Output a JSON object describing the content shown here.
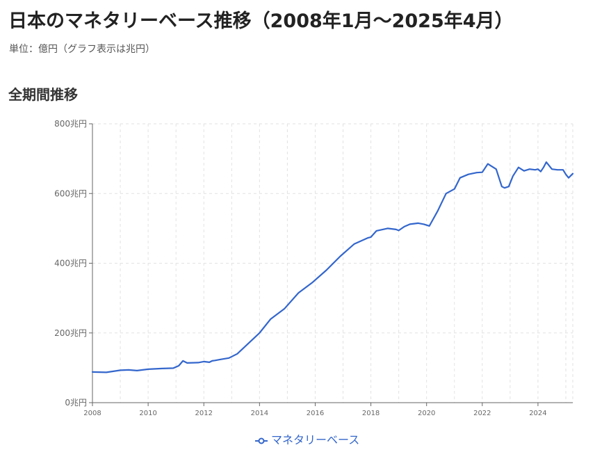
{
  "page": {
    "title": "日本のマネタリーベース推移（2008年1月～2025年4月）",
    "subtitle": "単位：億円（グラフ表示は兆円）",
    "section_title": "全期間推移"
  },
  "colors": {
    "series": "#3366cc",
    "grid": "#e2e2e2",
    "axis": "#666666"
  },
  "legend": {
    "icon": "line-circle-marker-icon",
    "position": "bottom"
  },
  "chart_data": {
    "type": "line",
    "title": "",
    "xlabel": "",
    "ylabel": "",
    "ylim": [
      0,
      800
    ],
    "xlim": [
      2008.0,
      2025.25
    ],
    "grid": true,
    "x_ticks": [
      2008,
      2010,
      2012,
      2014,
      2016,
      2018,
      2020,
      2022,
      2024
    ],
    "y_ticks": [
      0,
      200,
      400,
      600,
      800
    ],
    "y_tick_labels": [
      "0兆円",
      "200兆円",
      "400兆円",
      "600兆円",
      "800兆円"
    ],
    "series": [
      {
        "name": "マネタリーベース",
        "color": "#3366cc",
        "x": [
          2008.0,
          2008.5,
          2009.0,
          2009.3,
          2009.6,
          2010.0,
          2010.5,
          2010.9,
          2011.1,
          2011.25,
          2011.4,
          2011.8,
          2012.0,
          2012.2,
          2012.3,
          2012.4,
          2012.6,
          2012.9,
          2013.0,
          2013.2,
          2013.6,
          2014.0,
          2014.4,
          2014.9,
          2015.4,
          2015.9,
          2016.4,
          2016.9,
          2017.4,
          2017.9,
          2018.0,
          2018.2,
          2018.6,
          2018.9,
          2019.0,
          2019.2,
          2019.4,
          2019.7,
          2019.9,
          2020.1,
          2020.4,
          2020.7,
          2021.0,
          2021.2,
          2021.5,
          2021.8,
          2022.0,
          2022.2,
          2022.3,
          2022.5,
          2022.7,
          2022.8,
          2022.95,
          2023.1,
          2023.3,
          2023.5,
          2023.7,
          2023.9,
          2024.0,
          2024.1,
          2024.2,
          2024.3,
          2024.5,
          2024.7,
          2024.9,
          2025.0,
          2025.1,
          2025.25
        ],
        "values": [
          88,
          87,
          93,
          94,
          92,
          96,
          98,
          99,
          106,
          120,
          114,
          115,
          118,
          116,
          120,
          121,
          124,
          128,
          132,
          140,
          170,
          200,
          240,
          270,
          315,
          345,
          380,
          420,
          455,
          473,
          475,
          493,
          500,
          497,
          494,
          505,
          512,
          515,
          512,
          507,
          550,
          600,
          613,
          645,
          655,
          660,
          661,
          685,
          680,
          670,
          620,
          616,
          620,
          650,
          675,
          665,
          670,
          668,
          670,
          663,
          675,
          690,
          670,
          668,
          668,
          655,
          645,
          657
        ]
      }
    ]
  }
}
